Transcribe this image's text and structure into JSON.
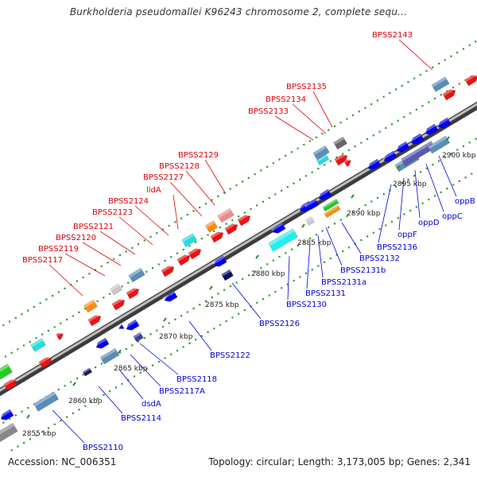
{
  "title": "Burkholderia pseudomallei K96243 chromosome 2, complete sequ...",
  "footer": {
    "accession": "Accession: NC_006351",
    "stats": "Topology: circular; Length: 3,173,005 bp; Genes: 2,341"
  },
  "colors": {
    "forward_label": "#e0000b",
    "reverse_label": "#0000dd",
    "backbone": "#777777",
    "dots": "#2e9e2e"
  },
  "scale_labels": [
    "2855 kbp",
    "2860 kbp",
    "2865 kbp",
    "2870 kbp",
    "2875 kbp",
    "2880 kbp",
    "2885 kbp",
    "2890 kbp",
    "2895 kbp",
    "2900 kbp"
  ],
  "forward_genes": [
    "BPSS2117",
    "BPSS2119",
    "BPSS2120",
    "BPSS2121",
    "BPSS2123",
    "BPSS2124",
    "lldA",
    "BPSS2127",
    "BPSS2128",
    "BPSS2129",
    "BPSS2133",
    "BPSS2134",
    "BPSS2135",
    "BPSS2143"
  ],
  "reverse_genes": [
    "BPSS2110",
    "BPSS2114",
    "dsdA",
    "BPSS2117A",
    "BPSS2118",
    "BPSS2122",
    "BPSS2126",
    "BPSS2130",
    "BPSS2131",
    "BPSS2131a",
    "BPSS2131b",
    "BPSS2132",
    "BPSS2136",
    "oppF",
    "oppD",
    "oppC",
    "oppB"
  ]
}
